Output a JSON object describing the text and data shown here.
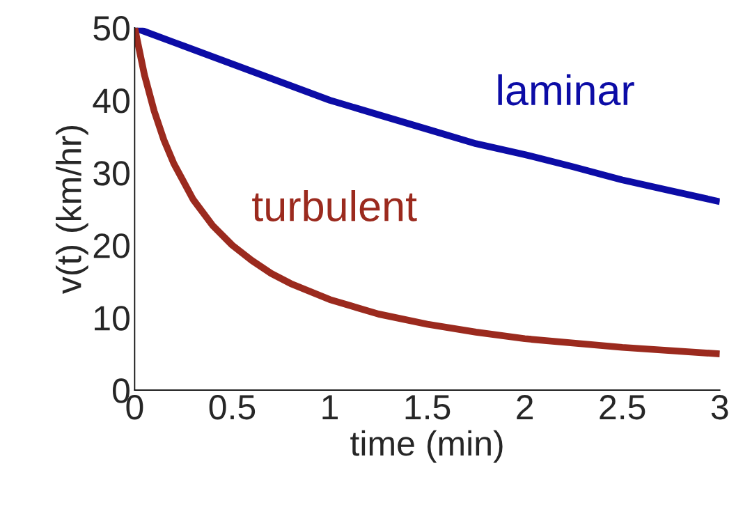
{
  "chart_data": {
    "type": "line",
    "xlabel": "time (min)",
    "ylabel": "v(t) (km/hr)",
    "xlim": [
      0,
      3
    ],
    "ylim": [
      0,
      50
    ],
    "xticks": [
      0,
      0.5,
      1,
      1.5,
      2,
      2.5,
      3
    ],
    "yticks": [
      0,
      10,
      20,
      30,
      40,
      50
    ],
    "grid": false,
    "legend": false,
    "line_style": "solid",
    "marker": "none",
    "series": [
      {
        "name": "laminar",
        "color": "#0c0ca6",
        "x": [
          0,
          0.25,
          0.5,
          0.75,
          1,
          1.25,
          1.5,
          1.75,
          2,
          2.25,
          2.5,
          2.75,
          3
        ],
        "values": [
          50,
          47.5,
          45,
          42.5,
          40,
          38,
          36,
          34,
          32.5,
          30.8,
          29,
          27.5,
          26
        ]
      },
      {
        "name": "turbulent",
        "color": "#9b2a1e",
        "x": [
          0,
          0.05,
          0.1,
          0.15,
          0.2,
          0.3,
          0.4,
          0.5,
          0.6,
          0.7,
          0.8,
          1,
          1.25,
          1.5,
          1.75,
          2,
          2.5,
          3
        ],
        "values": [
          50,
          43.5,
          38.5,
          34.5,
          31.3,
          26.3,
          22.7,
          20,
          17.9,
          16.1,
          14.7,
          12.5,
          10.5,
          9.1,
          8,
          7.1,
          5.9,
          5
        ]
      }
    ]
  }
}
